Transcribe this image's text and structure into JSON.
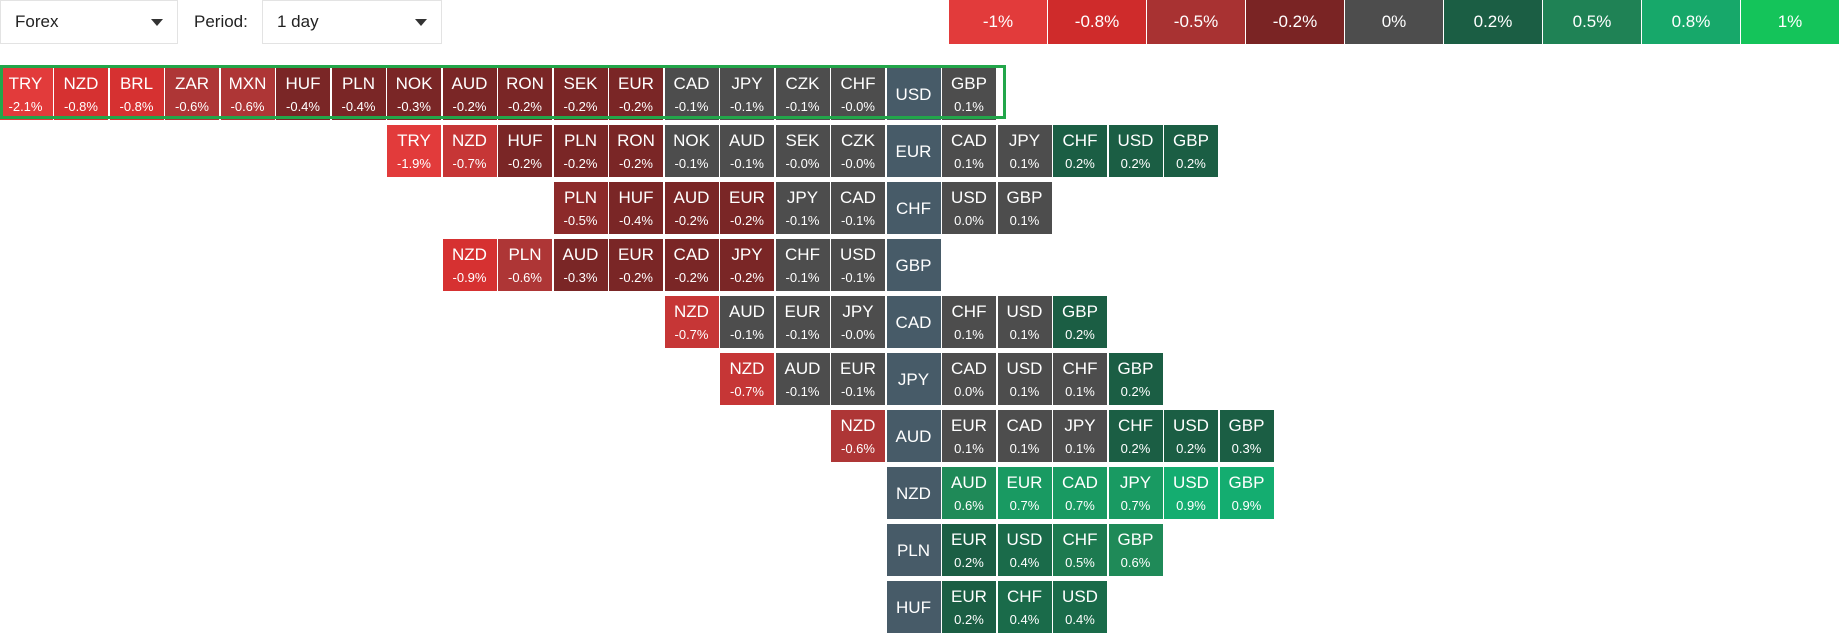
{
  "controls": {
    "market_value": "Forex",
    "period_label": "Period:",
    "period_value": "1 day"
  },
  "legend": [
    {
      "label": "-1%",
      "color": "#e23b3b"
    },
    {
      "label": "-0.8%",
      "color": "#cf2b2b"
    },
    {
      "label": "-0.5%",
      "color": "#a83232"
    },
    {
      "label": "-0.2%",
      "color": "#7a2424"
    },
    {
      "label": "0%",
      "color": "#4d4d4d"
    },
    {
      "label": "0.2%",
      "color": "#1b5e44"
    },
    {
      "label": "0.5%",
      "color": "#1f8255"
    },
    {
      "label": "0.8%",
      "color": "#17a86a"
    },
    {
      "label": "1%",
      "color": "#14c45a"
    }
  ],
  "rows": [
    {
      "base": "USD",
      "highlighted": true,
      "left": [
        [
          "TRY",
          "-2.1%"
        ],
        [
          "NZD",
          "-0.8%"
        ],
        [
          "BRL",
          "-0.8%"
        ],
        [
          "ZAR",
          "-0.6%"
        ],
        [
          "MXN",
          "-0.6%"
        ],
        [
          "HUF",
          "-0.4%"
        ],
        [
          "PLN",
          "-0.4%"
        ],
        [
          "NOK",
          "-0.3%"
        ],
        [
          "AUD",
          "-0.2%"
        ],
        [
          "RON",
          "-0.2%"
        ],
        [
          "SEK",
          "-0.2%"
        ],
        [
          "EUR",
          "-0.2%"
        ],
        [
          "CAD",
          "-0.1%"
        ],
        [
          "JPY",
          "-0.1%"
        ],
        [
          "CZK",
          "-0.1%"
        ],
        [
          "CHF",
          "-0.0%"
        ]
      ],
      "right": [
        [
          "GBP",
          "0.1%"
        ]
      ]
    },
    {
      "base": "EUR",
      "left": [
        [
          "TRY",
          "-1.9%"
        ],
        [
          "NZD",
          "-0.7%"
        ],
        [
          "HUF",
          "-0.2%"
        ],
        [
          "PLN",
          "-0.2%"
        ],
        [
          "RON",
          "-0.2%"
        ],
        [
          "NOK",
          "-0.1%"
        ],
        [
          "AUD",
          "-0.1%"
        ],
        [
          "SEK",
          "-0.0%"
        ],
        [
          "CZK",
          "-0.0%"
        ]
      ],
      "right": [
        [
          "CAD",
          "0.1%"
        ],
        [
          "JPY",
          "0.1%"
        ],
        [
          "CHF",
          "0.2%"
        ],
        [
          "USD",
          "0.2%"
        ],
        [
          "GBP",
          "0.2%"
        ]
      ]
    },
    {
      "base": "CHF",
      "left": [
        [
          "PLN",
          "-0.5%"
        ],
        [
          "HUF",
          "-0.4%"
        ],
        [
          "AUD",
          "-0.2%"
        ],
        [
          "EUR",
          "-0.2%"
        ],
        [
          "JPY",
          "-0.1%"
        ],
        [
          "CAD",
          "-0.1%"
        ]
      ],
      "right": [
        [
          "USD",
          "0.0%"
        ],
        [
          "GBP",
          "0.1%"
        ]
      ]
    },
    {
      "base": "GBP",
      "left": [
        [
          "NZD",
          "-0.9%"
        ],
        [
          "PLN",
          "-0.6%"
        ],
        [
          "AUD",
          "-0.3%"
        ],
        [
          "EUR",
          "-0.2%"
        ],
        [
          "CAD",
          "-0.2%"
        ],
        [
          "JPY",
          "-0.2%"
        ],
        [
          "CHF",
          "-0.1%"
        ],
        [
          "USD",
          "-0.1%"
        ]
      ],
      "right": []
    },
    {
      "base": "CAD",
      "left": [
        [
          "NZD",
          "-0.7%"
        ],
        [
          "AUD",
          "-0.1%"
        ],
        [
          "EUR",
          "-0.1%"
        ],
        [
          "JPY",
          "-0.0%"
        ]
      ],
      "right": [
        [
          "CHF",
          "0.1%"
        ],
        [
          "USD",
          "0.1%"
        ],
        [
          "GBP",
          "0.2%"
        ]
      ]
    },
    {
      "base": "JPY",
      "left": [
        [
          "NZD",
          "-0.7%"
        ],
        [
          "AUD",
          "-0.1%"
        ],
        [
          "EUR",
          "-0.1%"
        ]
      ],
      "right": [
        [
          "CAD",
          "0.0%"
        ],
        [
          "USD",
          "0.1%"
        ],
        [
          "CHF",
          "0.1%"
        ],
        [
          "GBP",
          "0.2%"
        ]
      ]
    },
    {
      "base": "AUD",
      "left": [
        [
          "NZD",
          "-0.6%"
        ]
      ],
      "right": [
        [
          "EUR",
          "0.1%"
        ],
        [
          "CAD",
          "0.1%"
        ],
        [
          "JPY",
          "0.1%"
        ],
        [
          "CHF",
          "0.2%"
        ],
        [
          "USD",
          "0.2%"
        ],
        [
          "GBP",
          "0.3%"
        ]
      ]
    },
    {
      "base": "NZD",
      "left": [],
      "right": [
        [
          "AUD",
          "0.6%"
        ],
        [
          "EUR",
          "0.7%"
        ],
        [
          "CAD",
          "0.7%"
        ],
        [
          "JPY",
          "0.7%"
        ],
        [
          "USD",
          "0.9%"
        ],
        [
          "GBP",
          "0.9%"
        ]
      ]
    },
    {
      "base": "PLN",
      "left": [],
      "right": [
        [
          "EUR",
          "0.2%"
        ],
        [
          "USD",
          "0.4%"
        ],
        [
          "CHF",
          "0.5%"
        ],
        [
          "GBP",
          "0.6%"
        ]
      ]
    },
    {
      "base": "HUF",
      "left": [],
      "right": [
        [
          "EUR",
          "0.2%"
        ],
        [
          "CHF",
          "0.4%"
        ],
        [
          "USD",
          "0.4%"
        ]
      ]
    }
  ],
  "center_color": "#475b68"
}
